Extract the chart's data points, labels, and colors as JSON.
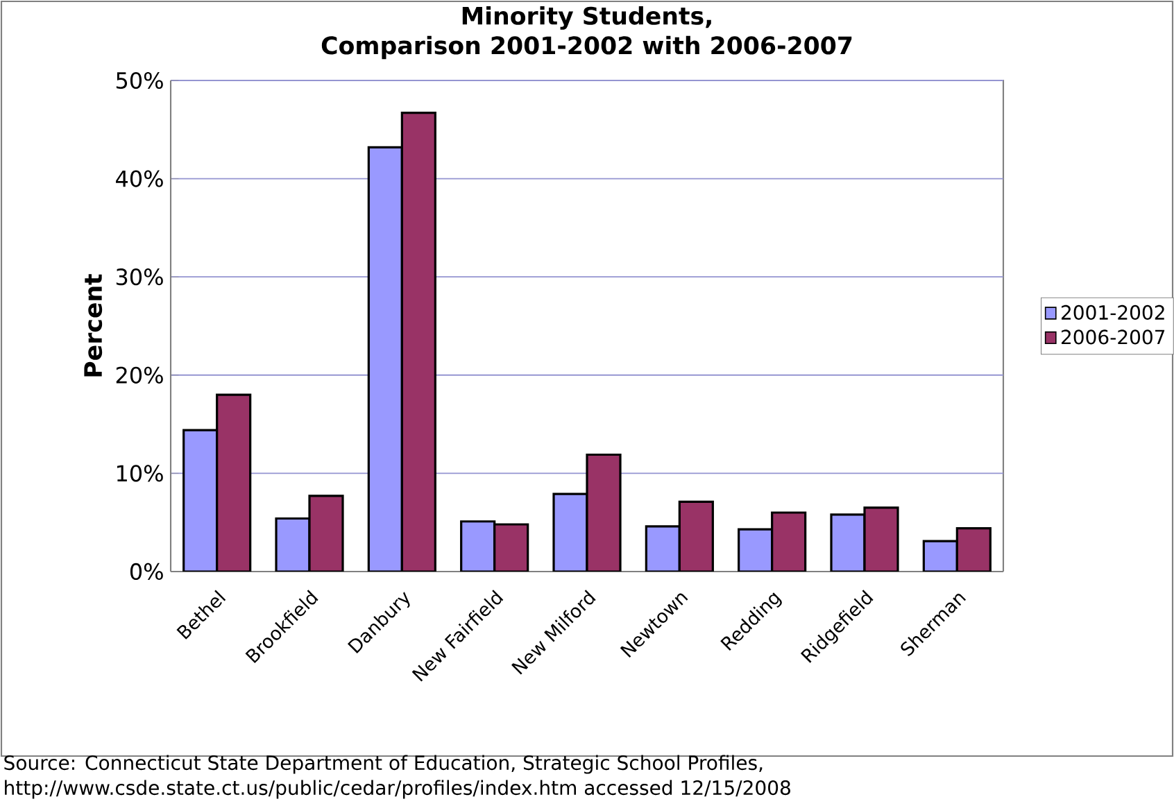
{
  "chart_data": {
    "type": "bar",
    "title": "Minority Students,\nComparison 2001-2002 with 2006-2007",
    "ylabel": "Percent",
    "categories": [
      "Bethel",
      "Brookfield",
      "Danbury",
      "New Fairfield",
      "New Milford",
      "Newtown",
      "Redding",
      "Ridgefield",
      "Sherman"
    ],
    "series": [
      {
        "name": "2001-2002",
        "color": "#9999ff",
        "values": [
          14.4,
          5.4,
          43.2,
          5.1,
          7.9,
          4.6,
          4.3,
          5.8,
          3.1
        ]
      },
      {
        "name": "2006-2007",
        "color": "#993366",
        "values": [
          18.0,
          7.7,
          46.7,
          4.8,
          11.9,
          7.1,
          6.0,
          6.5,
          4.4
        ]
      }
    ],
    "ylim": [
      0,
      50
    ],
    "yticks": [
      {
        "value": 0,
        "label": "0%"
      },
      {
        "value": 10,
        "label": "10%"
      },
      {
        "value": 20,
        "label": "20%"
      },
      {
        "value": 30,
        "label": "30%"
      },
      {
        "value": 40,
        "label": "40%"
      },
      {
        "value": 50,
        "label": "50%"
      }
    ],
    "grid": "y",
    "legend": "right",
    "annotations": [
      "Source: Connecticut State Department of Education, Strategic School Profiles,",
      "http://www.csde.state.ct.us/public/cedar/profiles/index.htm  accessed 12/15/2008"
    ]
  }
}
